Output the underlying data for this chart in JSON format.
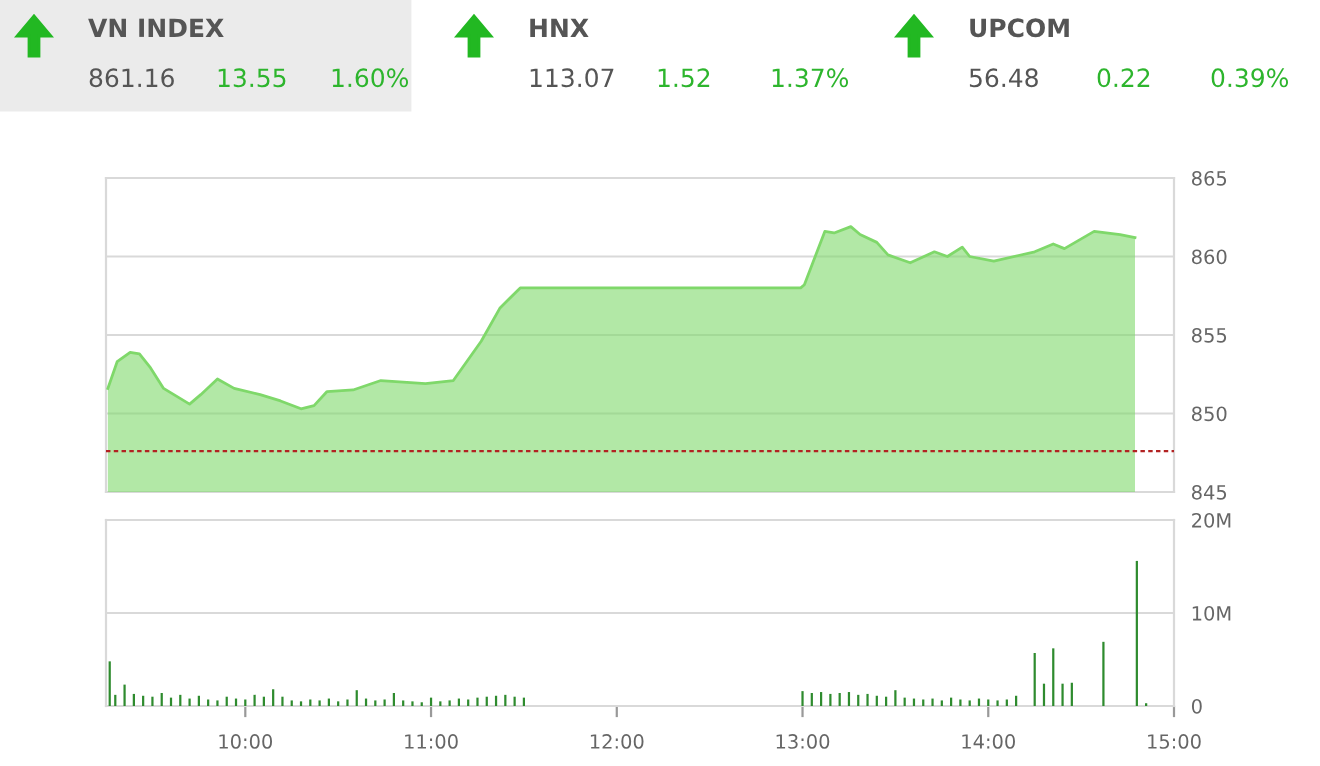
{
  "chart_data": [
    {
      "type": "other",
      "annotations": [
        "VN INDEX",
        "861.16",
        "13.55",
        "1.60%",
        "HNX",
        "113.07",
        "1.52",
        "1.37%",
        "UPCOM",
        "56.48",
        "0.22",
        "0.39%"
      ]
    },
    {
      "type": "area",
      "xlim": [
        9.25,
        15
      ],
      "ylim": [
        845,
        865
      ],
      "yticks": [
        845,
        850,
        855,
        860,
        865
      ],
      "tick_labels": "y",
      "grid": "y",
      "ref_lines": [
        {
          "axis": "y",
          "value": 847.6,
          "color": "#b22222",
          "line_style": "dashed"
        }
      ],
      "series": [
        {
          "color": "#7fd86a",
          "x": [
            9.26,
            9.31,
            9.38,
            9.43,
            9.49,
            9.56,
            9.7,
            9.76,
            9.85,
            9.94,
            10.08,
            10.19,
            10.3,
            10.37,
            10.44,
            10.58,
            10.73,
            10.97,
            11.12,
            11.27,
            11.37,
            11.48,
            12.99,
            13.01,
            13.12,
            13.17,
            13.26,
            13.31,
            13.4,
            13.46,
            13.58,
            13.71,
            13.78,
            13.86,
            13.9,
            14.03,
            14.25,
            14.35,
            14.41,
            14.57,
            14.71,
            14.79
          ],
          "values": [
            851.6,
            853.3,
            853.9,
            853.8,
            852.9,
            851.6,
            850.6,
            851.2,
            852.2,
            851.6,
            851.2,
            850.8,
            850.3,
            850.5,
            851.4,
            851.5,
            852.1,
            851.9,
            852.1,
            854.6,
            856.7,
            858.0,
            858.0,
            858.2,
            861.6,
            861.5,
            861.9,
            861.4,
            860.9,
            860.1,
            859.6,
            860.3,
            860.0,
            860.6,
            860.0,
            859.7,
            860.3,
            860.8,
            860.5,
            861.6,
            861.4,
            861.2
          ]
        }
      ]
    },
    {
      "type": "bar",
      "xlim": [
        9.25,
        15
      ],
      "xticks": [
        {
          "value": 10,
          "label": "10:00"
        },
        {
          "value": 11,
          "label": "11:00"
        },
        {
          "value": 12,
          "label": "12:00"
        },
        {
          "value": 13,
          "label": "13:00"
        },
        {
          "value": 14,
          "label": "14:00"
        },
        {
          "value": 15,
          "label": "15:00"
        }
      ],
      "ylim": [
        0,
        20
      ],
      "yticks": [
        0,
        {
          "value": 10,
          "label": "10M"
        },
        {
          "value": 20,
          "label": "20M"
        }
      ],
      "grid": "y",
      "series": [
        {
          "color": "#2e8b2e",
          "x": [
            9.27,
            9.3,
            9.35,
            9.4,
            9.45,
            9.5,
            9.55,
            9.6,
            9.65,
            9.7,
            9.75,
            9.8,
            9.85,
            9.9,
            9.95,
            10.0,
            10.05,
            10.1,
            10.15,
            10.2,
            10.25,
            10.3,
            10.35,
            10.4,
            10.45,
            10.5,
            10.55,
            10.6,
            10.65,
            10.7,
            10.75,
            10.8,
            10.85,
            10.9,
            10.95,
            11.0,
            11.05,
            11.1,
            11.15,
            11.2,
            11.25,
            11.3,
            11.35,
            11.4,
            11.45,
            11.5,
            13.0,
            13.05,
            13.1,
            13.15,
            13.2,
            13.25,
            13.3,
            13.35,
            13.4,
            13.45,
            13.5,
            13.55,
            13.6,
            13.65,
            13.7,
            13.75,
            13.8,
            13.85,
            13.9,
            13.95,
            14.0,
            14.05,
            14.1,
            14.15,
            14.25,
            14.3,
            14.35,
            14.4,
            14.45,
            14.62,
            14.8,
            14.85
          ],
          "values": [
            4.8,
            1.2,
            2.3,
            1.3,
            1.1,
            1.0,
            1.4,
            0.9,
            1.2,
            0.8,
            1.1,
            0.7,
            0.6,
            1.0,
            0.8,
            0.7,
            1.2,
            1.0,
            1.8,
            1.0,
            0.6,
            0.5,
            0.7,
            0.6,
            0.8,
            0.5,
            0.7,
            1.7,
            0.8,
            0.6,
            0.7,
            1.4,
            0.6,
            0.5,
            0.4,
            0.9,
            0.5,
            0.6,
            0.8,
            0.7,
            0.9,
            1.0,
            1.1,
            1.2,
            1.0,
            0.9,
            1.6,
            1.4,
            1.5,
            1.3,
            1.4,
            1.5,
            1.2,
            1.3,
            1.1,
            1.0,
            1.7,
            0.9,
            0.8,
            0.7,
            0.8,
            0.6,
            0.9,
            0.7,
            0.6,
            0.8,
            0.7,
            0.6,
            0.7,
            1.1,
            5.7,
            2.4,
            6.2,
            2.4,
            2.5,
            6.9,
            15.6,
            0.3
          ]
        }
      ]
    }
  ]
}
